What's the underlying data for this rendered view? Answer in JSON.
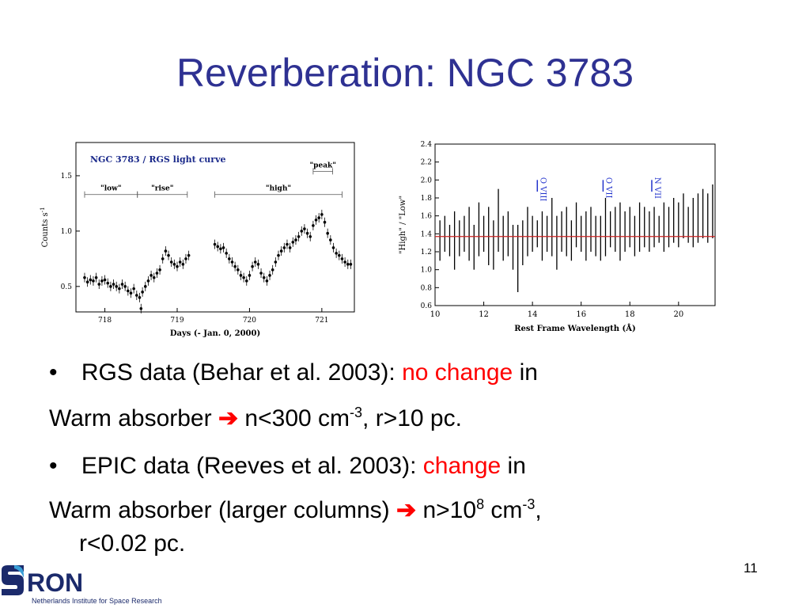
{
  "slide": {
    "title": "Reverberation: NGC 3783",
    "page_number": "11",
    "bullet1": {
      "bullet": "•",
      "text": "RGS data (Behar et al. 2003): ",
      "highlight": "no change",
      "after": " in"
    },
    "line2": {
      "text": "Warm absorber ",
      "arrow": "➔",
      "t1": " n<300 cm",
      "sup1": "-3",
      "t2": ", r>10 pc."
    },
    "bullet3": {
      "bullet": "•",
      "text": "EPIC data (Reeves et al. 2003): ",
      "highlight": "change",
      "after": " in"
    },
    "line4": {
      "text": "Warm absorber (larger columns) ",
      "arrow": "➔",
      "t1": " n>10",
      "sup1": "8",
      "t2": " cm",
      "sup2": "-3",
      "t3": ","
    },
    "line5": {
      "text": "r<0.02 pc."
    },
    "logo": {
      "word": "RON",
      "subtitle": "Netherlands Institute for Space Research"
    },
    "colors": {
      "title": "#2e3192",
      "highlight": "#ff0000",
      "series": "#000000",
      "ratio_line": "#cc2222"
    }
  },
  "chart_data": [
    {
      "type": "scatter",
      "title": "NGC 3783 / RGS light curve",
      "xlabel": "Days (- Jan. 0, 2000)",
      "ylabel": "Counts s",
      "ylabel_sup": "-1",
      "xlim": [
        717.6,
        721.45
      ],
      "ylim": [
        0.27,
        1.8
      ],
      "xticks": [
        718,
        719,
        720,
        721
      ],
      "yticks": [
        0.5,
        1.0,
        1.5
      ],
      "ytick_labels": [
        "0.5",
        "1.0",
        "1.5"
      ],
      "annotations": [
        {
          "label": "\"low\"",
          "range": [
            717.72,
            718.45
          ]
        },
        {
          "label": "\"rise\"",
          "range": [
            718.45,
            719.14
          ]
        },
        {
          "label": "\"high\"",
          "range": [
            719.52,
            721.28
          ]
        },
        {
          "label": "\"peak\"",
          "range": [
            720.88,
            721.15
          ]
        }
      ],
      "series": [
        {
          "x": [
            717.72,
            717.76,
            717.8,
            717.84,
            717.88,
            717.92,
            717.96,
            718.0,
            718.04,
            718.08,
            718.12,
            718.16,
            718.2,
            718.24,
            718.28,
            718.32,
            718.36,
            718.4,
            718.44,
            718.48,
            718.5,
            718.52,
            718.56,
            718.6,
            718.64,
            718.68,
            718.72,
            718.76,
            718.8,
            718.84,
            718.88,
            718.92,
            718.96,
            719.0,
            719.04,
            719.08,
            719.12,
            719.16,
            719.52,
            719.56,
            719.6,
            719.64,
            719.68,
            719.72,
            719.76,
            719.8,
            719.84,
            719.88,
            719.92,
            719.96,
            720.0,
            720.04,
            720.08,
            720.12,
            720.16,
            720.2,
            720.24,
            720.28,
            720.32,
            720.36,
            720.4,
            720.44,
            720.48,
            720.52,
            720.56,
            720.6,
            720.64,
            720.68,
            720.72,
            720.76,
            720.8,
            720.84,
            720.88,
            720.92,
            720.96,
            721.0,
            721.04,
            721.08,
            721.12,
            721.16,
            721.2,
            721.24,
            721.28,
            721.32,
            721.36,
            721.4
          ],
          "y": [
            0.58,
            0.54,
            0.56,
            0.55,
            0.58,
            0.52,
            0.55,
            0.56,
            0.53,
            0.5,
            0.52,
            0.5,
            0.48,
            0.52,
            0.5,
            0.46,
            0.44,
            0.48,
            0.42,
            0.4,
            0.3,
            0.45,
            0.5,
            0.55,
            0.6,
            0.58,
            0.62,
            0.65,
            0.75,
            0.82,
            0.78,
            0.72,
            0.7,
            0.68,
            0.72,
            0.7,
            0.75,
            0.78,
            0.88,
            0.86,
            0.84,
            0.85,
            0.8,
            0.75,
            0.72,
            0.68,
            0.65,
            0.6,
            0.58,
            0.55,
            0.6,
            0.68,
            0.72,
            0.7,
            0.62,
            0.58,
            0.55,
            0.6,
            0.65,
            0.72,
            0.78,
            0.82,
            0.85,
            0.88,
            0.85,
            0.9,
            0.92,
            0.95,
            1.0,
            1.02,
            0.98,
            0.95,
            1.05,
            1.1,
            1.12,
            1.15,
            1.08,
            0.98,
            0.92,
            0.85,
            0.8,
            0.78,
            0.75,
            0.72,
            0.7,
            0.7
          ]
        }
      ]
    },
    {
      "type": "bar",
      "xlabel": "Rest Frame Wavelength (Å)",
      "ylabel": "\"High\" / \"Low\"",
      "xlim": [
        10,
        21.5
      ],
      "ylim": [
        0.6,
        2.4
      ],
      "xticks": [
        10,
        12,
        14,
        16,
        18,
        20
      ],
      "yticks": [
        0.6,
        0.8,
        1.0,
        1.2,
        1.4,
        1.6,
        1.8,
        2.0,
        2.2,
        2.4
      ],
      "ytick_labels": [
        "0.6",
        "0.8",
        "1.0",
        "1.2",
        "1.4",
        "1.6",
        "1.8",
        "2.0",
        "2.2",
        "2.4"
      ],
      "reference_line": 1.37,
      "line_labels": [
        {
          "label": "O VIII",
          "x": 14.2
        },
        {
          "label": "O VII",
          "x": 16.9
        },
        {
          "label": "N VII",
          "x": 18.9
        }
      ],
      "series": [
        {
          "x": [
            10.2,
            10.4,
            10.6,
            10.8,
            11.0,
            11.2,
            11.4,
            11.6,
            11.8,
            12.0,
            12.2,
            12.4,
            12.6,
            12.8,
            13.0,
            13.2,
            13.4,
            13.6,
            13.8,
            14.0,
            14.2,
            14.4,
            14.6,
            14.8,
            15.0,
            15.2,
            15.4,
            15.6,
            15.8,
            16.0,
            16.2,
            16.4,
            16.6,
            16.8,
            17.0,
            17.2,
            17.4,
            17.6,
            17.8,
            18.0,
            18.2,
            18.4,
            18.6,
            18.8,
            19.0,
            19.2,
            19.4,
            19.6,
            19.8,
            20.0,
            20.2,
            20.4,
            20.6,
            20.8,
            21.0,
            21.2,
            21.4
          ],
          "low": [
            1.1,
            1.2,
            1.15,
            1.0,
            1.15,
            1.2,
            1.1,
            1.0,
            1.15,
            1.2,
            1.05,
            1.0,
            1.2,
            1.1,
            1.15,
            1.0,
            0.75,
            1.05,
            1.15,
            1.2,
            1.25,
            1.1,
            1.2,
            1.15,
            1.0,
            1.2,
            1.15,
            1.1,
            1.25,
            1.2,
            1.1,
            1.2,
            1.15,
            1.1,
            1.15,
            1.25,
            1.2,
            1.1,
            1.2,
            1.25,
            1.15,
            1.2,
            1.25,
            1.2,
            1.25,
            1.3,
            1.2,
            1.25,
            1.3,
            1.25,
            1.35,
            1.3,
            1.25,
            1.3,
            1.35,
            1.3,
            1.35
          ],
          "high": [
            1.55,
            1.6,
            1.5,
            1.65,
            1.55,
            1.6,
            1.7,
            1.5,
            1.75,
            1.6,
            1.7,
            1.55,
            1.9,
            1.6,
            1.65,
            1.5,
            1.5,
            1.55,
            1.7,
            1.6,
            1.55,
            1.65,
            1.6,
            1.8,
            1.6,
            1.65,
            1.7,
            1.55,
            1.75,
            1.6,
            1.65,
            1.7,
            1.6,
            1.6,
            1.8,
            1.65,
            1.7,
            1.75,
            1.65,
            1.7,
            1.6,
            1.75,
            1.7,
            1.65,
            1.7,
            1.6,
            1.75,
            1.7,
            1.8,
            1.75,
            1.85,
            1.7,
            1.8,
            1.85,
            1.9,
            1.85,
            1.95
          ]
        }
      ]
    }
  ]
}
